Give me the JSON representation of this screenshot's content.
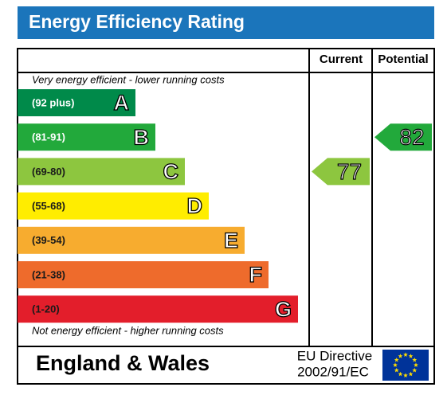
{
  "chart_data": {
    "type": "epc",
    "title": "Energy Efficiency Rating",
    "columns": [
      "Current",
      "Potential"
    ],
    "top_note": "Very energy efficient - lower running costs",
    "bottom_note": "Not energy efficient - higher running costs",
    "bands": [
      {
        "range": "(92 plus)",
        "letter": "A",
        "color": "#008a4a",
        "text_color": "#ffffff"
      },
      {
        "range": "(81-91)",
        "letter": "B",
        "color": "#22a93b",
        "text_color": "#ffffff"
      },
      {
        "range": "(69-80)",
        "letter": "C",
        "color": "#8dc63f",
        "text_color": "#1a1a1a"
      },
      {
        "range": "(55-68)",
        "letter": "D",
        "color": "#ffed00",
        "text_color": "#1a1a1a"
      },
      {
        "range": "(39-54)",
        "letter": "E",
        "color": "#f7ac2f",
        "text_color": "#1a1a1a"
      },
      {
        "range": "(21-38)",
        "letter": "F",
        "color": "#ee6b2c",
        "text_color": "#1a1a1a"
      },
      {
        "range": "(1-20)",
        "letter": "G",
        "color": "#e31e2b",
        "text_color": "#1a1a1a"
      }
    ],
    "series": [
      {
        "name": "Current",
        "values": [
          77
        ]
      },
      {
        "name": "Potential",
        "values": [
          82
        ]
      }
    ],
    "footer": {
      "region": "England & Wales",
      "directive_line1": "EU Directive",
      "directive_line2": "2002/91/EC"
    }
  }
}
